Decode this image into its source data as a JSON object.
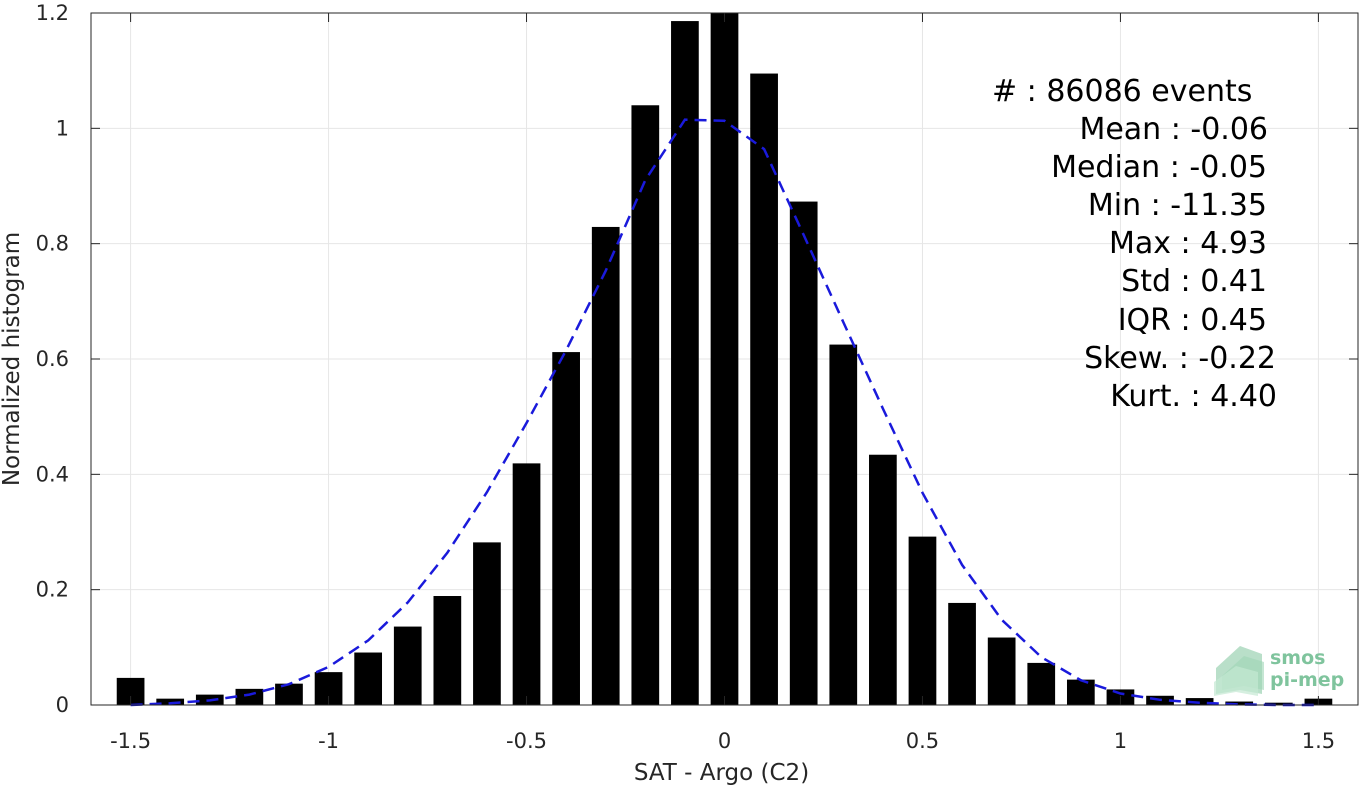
{
  "chart_data": {
    "type": "bar",
    "xlabel": "SAT - Argo (C2)",
    "ylabel": "Normalized histogram",
    "xlim": [
      -1.6,
      1.6
    ],
    "ylim": [
      0,
      1.2
    ],
    "xticks": [
      -1.5,
      -1,
      -0.5,
      0,
      0.5,
      1,
      1.5
    ],
    "xtick_labels": [
      "-1.5",
      "-1",
      "-0.5",
      "0",
      "0.5",
      "1",
      "1.5"
    ],
    "yticks": [
      0,
      0.2,
      0.4,
      0.6,
      0.8,
      1,
      1.2
    ],
    "ytick_labels": [
      "0",
      "0.2",
      "0.4",
      "0.6",
      "0.8",
      "1",
      "1.2"
    ],
    "grid": true,
    "bar_width": 0.07,
    "bar_color": "#000000",
    "fit_color": "#1a1adb",
    "x": [
      -1.5,
      -1.4,
      -1.3,
      -1.2,
      -1.1,
      -1.0,
      -0.9,
      -0.8,
      -0.7,
      -0.6,
      -0.5,
      -0.4,
      -0.3,
      -0.2,
      -0.1,
      0.0,
      0.1,
      0.2,
      0.3,
      0.4,
      0.5,
      0.6,
      0.7,
      0.8,
      0.9,
      1.0,
      1.1,
      1.2,
      1.3,
      1.4,
      1.5
    ],
    "values": [
      0.047,
      0.011,
      0.018,
      0.028,
      0.037,
      0.057,
      0.091,
      0.136,
      0.189,
      0.282,
      0.419,
      0.612,
      0.829,
      1.04,
      1.186,
      1.2,
      1.095,
      0.873,
      0.625,
      0.434,
      0.292,
      0.177,
      0.117,
      0.073,
      0.044,
      0.027,
      0.016,
      0.012,
      0.006,
      0.004,
      0.011
    ],
    "fit_curve": {
      "style": "dashed",
      "x": [
        -1.5,
        -1.4,
        -1.3,
        -1.2,
        -1.1,
        -1.0,
        -0.9,
        -0.8,
        -0.7,
        -0.6,
        -0.5,
        -0.4,
        -0.3,
        -0.2,
        -0.1,
        0.0,
        0.1,
        0.2,
        0.3,
        0.4,
        0.5,
        0.6,
        0.7,
        0.8,
        0.9,
        1.0,
        1.1,
        1.2,
        1.3,
        1.4,
        1.5
      ],
      "y": [
        0.0,
        0.003,
        0.008,
        0.018,
        0.036,
        0.066,
        0.112,
        0.178,
        0.264,
        0.369,
        0.489,
        0.615,
        0.753,
        0.91,
        1.015,
        1.013,
        0.964,
        0.815,
        0.664,
        0.514,
        0.368,
        0.243,
        0.148,
        0.083,
        0.043,
        0.02,
        0.009,
        0.004,
        0.001,
        0.0,
        0.0
      ]
    }
  },
  "stats": [
    "#  : 86086 events",
    "Mean : -0.06",
    "Median : -0.05",
    "Min : -11.35",
    "Max : 4.93",
    "Std : 0.41",
    "IQR : 0.45",
    "Skew. : -0.22",
    "Kurt. : 4.40"
  ],
  "logo": {
    "line1": "smos",
    "line2": "pi-mep",
    "color": "#7fc49d"
  }
}
